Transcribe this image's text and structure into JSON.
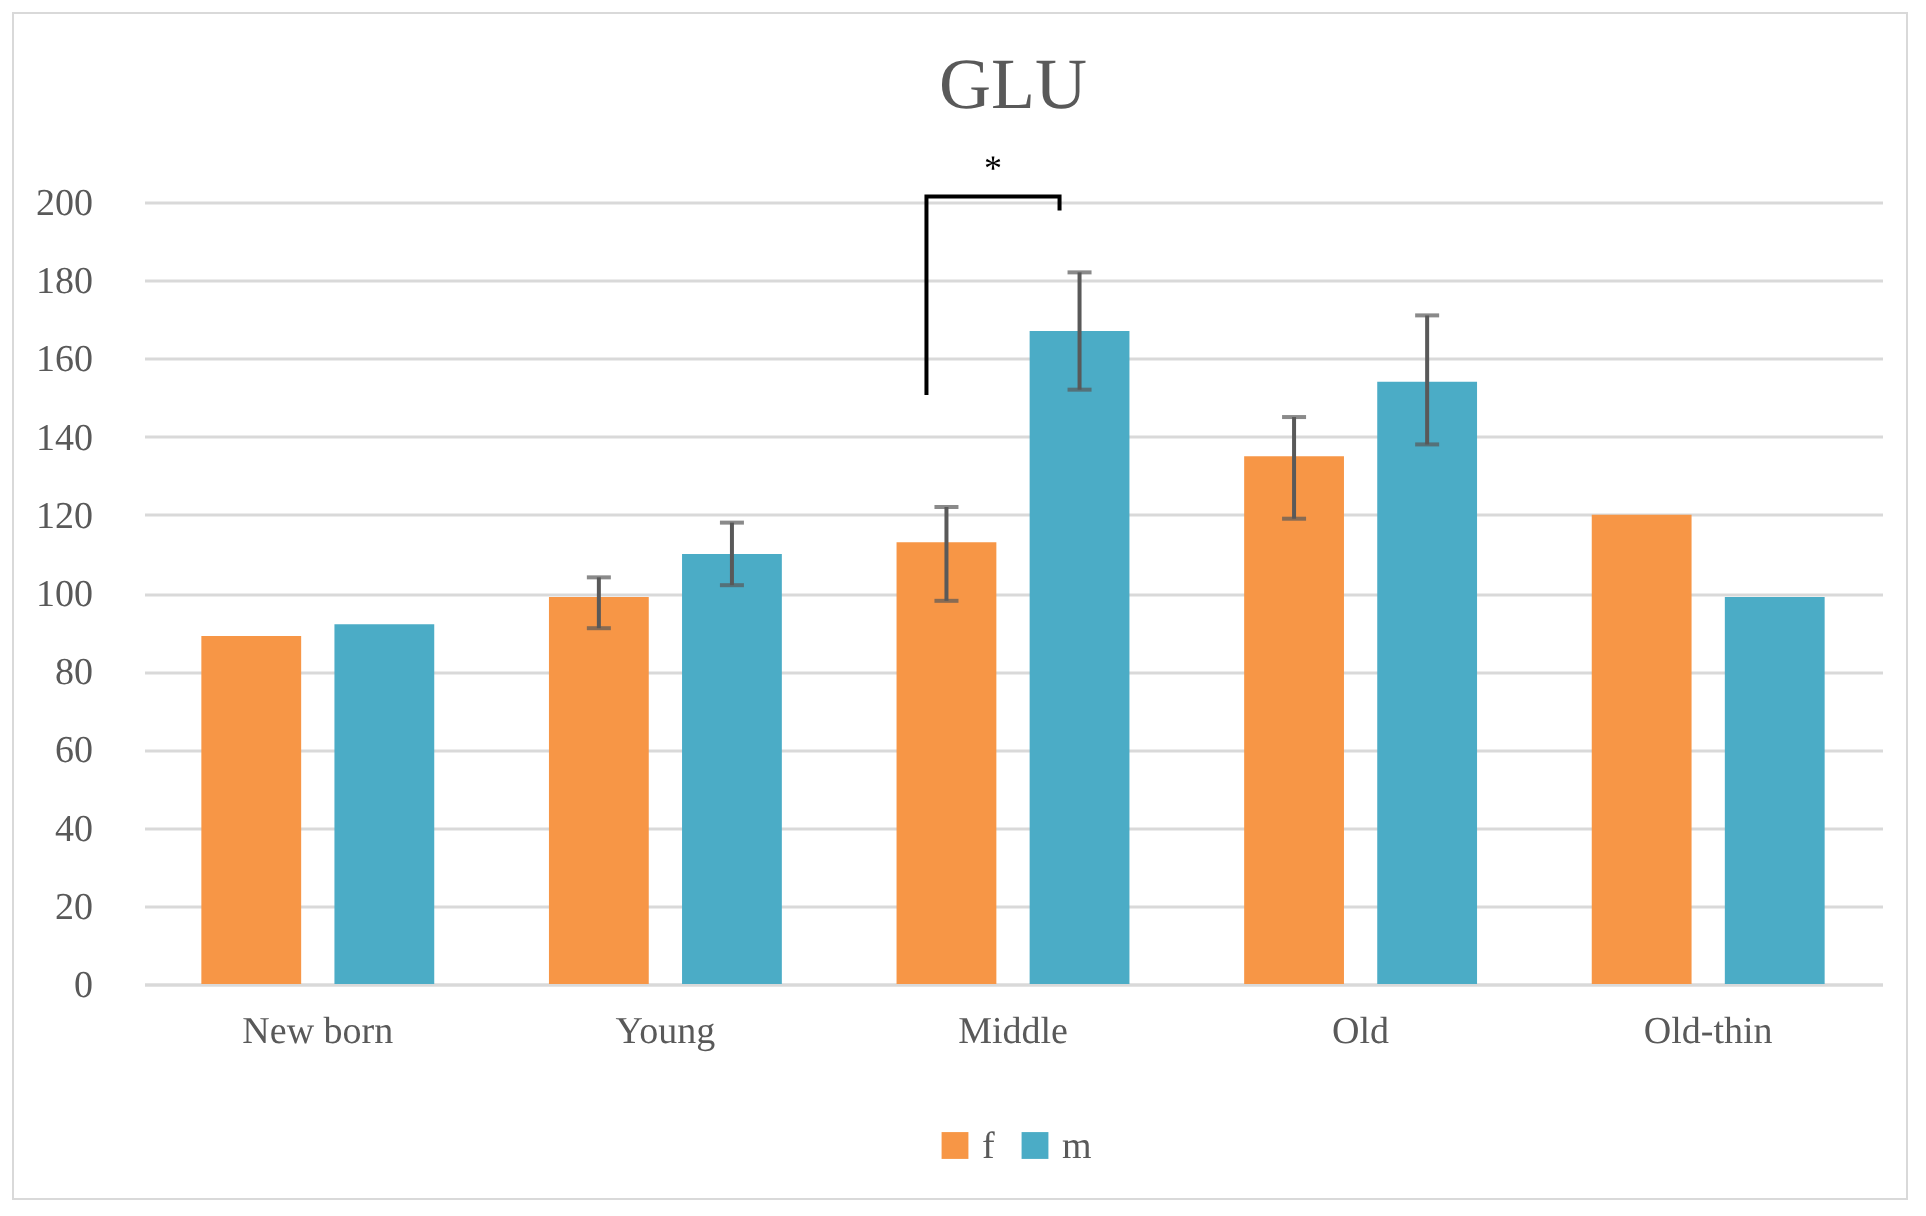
{
  "chart_data": {
    "type": "bar",
    "title": "GLU",
    "categories": [
      "New born",
      "Young",
      "Middle",
      "Old",
      "Old-thin"
    ],
    "series": [
      {
        "name": "f",
        "color": "#f79646",
        "values": [
          89,
          99,
          113,
          135,
          120
        ],
        "errors": [
          null,
          [
            91,
            104
          ],
          [
            98,
            122
          ],
          [
            119,
            145
          ],
          null
        ]
      },
      {
        "name": "m",
        "color": "#4bacc6",
        "values": [
          92,
          110,
          167,
          154,
          99
        ],
        "errors": [
          null,
          [
            102,
            118
          ],
          [
            152,
            182
          ],
          [
            138,
            171
          ],
          null
        ]
      }
    ],
    "ylim": [
      0,
      200
    ],
    "yticks": [
      0,
      20,
      40,
      60,
      80,
      100,
      120,
      140,
      160,
      180,
      200
    ],
    "grid": "y",
    "legend": "bottom",
    "annotations": [
      "*"
    ]
  }
}
